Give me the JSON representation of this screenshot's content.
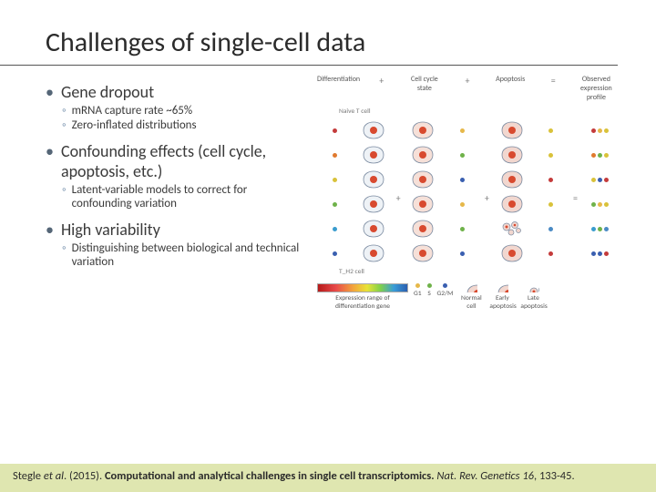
{
  "title": "Challenges of single-cell data",
  "bullets": [
    {
      "text": "Gene dropout",
      "sub": [
        {
          "text": "mRNA capture rate ~65%"
        },
        {
          "text": "Zero-inflated distributions"
        }
      ]
    },
    {
      "text": "Confounding effects (cell cycle, apoptosis, etc.)",
      "sub": [
        {
          "text": "Latent-variable models to correct for confounding variation"
        }
      ]
    },
    {
      "text": "High variability",
      "sub": [
        {
          "text": "Distinguishing between biological and technical variation"
        }
      ]
    }
  ],
  "figure": {
    "headers": [
      "Differentiation",
      "Cell cycle state",
      "Apoptosis",
      "Observed expression profile"
    ],
    "top_label": "Naive T cell",
    "bottom_label": "T_H2 cell",
    "cell_rows": 6,
    "dot_colors_diff": [
      "#c43b3b",
      "#e07a2f",
      "#d9c23a",
      "#6fb24a",
      "#3a9cce",
      "#3a5fb0"
    ],
    "cc_labels": [
      "G1",
      "S",
      "G2/M"
    ],
    "cc_colors": {
      "G1": "#e6b84a",
      "S": "#6fb24a",
      "G2/M": "#3a5fb0"
    },
    "apop_labels": [
      "Normal cell",
      "Early apoptosis",
      "Late apoptosis"
    ],
    "apop_colors": {
      "normal": "#d9c23a",
      "early": "#c43b3b",
      "late": "#4a8ac4"
    },
    "legend_gradient_label": "Expression range of differentiation gene",
    "cell_outline": "#7a8aa0",
    "cell_fill_start": "#eef2f6",
    "cell_fill_mid": "#f6e0d8",
    "nucleus_color": "#d84a2f",
    "apop_cell_fill": "#f2d7cf"
  },
  "citation": {
    "authors": "Stegle ",
    "etal": "et al",
    "year": ". (2015). ",
    "title": "Computational and analytical challenges in single cell transcriptomics.",
    "journal": " Nat. Rev. Genetics 16",
    "pages": ", 133-45."
  },
  "colors": {
    "bullet": "#556677",
    "sub_bullet": "#8099b3",
    "citation_bg": "#dfe6b0"
  }
}
